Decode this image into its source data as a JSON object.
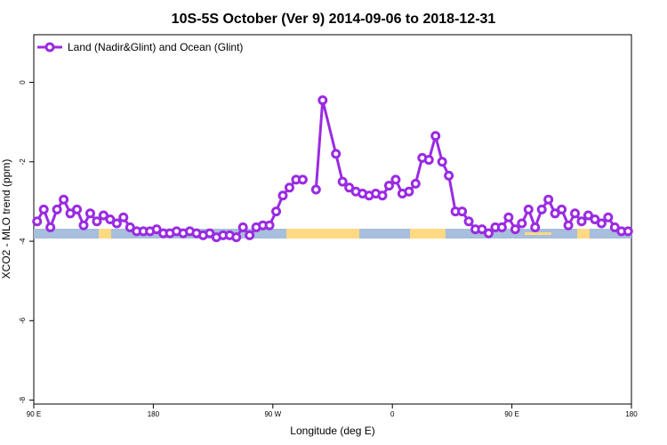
{
  "chart_data": {
    "type": "line",
    "title": "10S-5S October (Ver 9)   2014-09-06 to 2018-12-31",
    "xlabel": "Longitude (deg E)",
    "ylabel": "XCO2 - MLO trend (ppm)",
    "xlim": [
      90,
      450
    ],
    "ylim": [
      -8.1,
      1.2
    ],
    "x_ticks": [
      {
        "value": 90,
        "label": "90 E"
      },
      {
        "value": 162,
        "label": "180"
      },
      {
        "value": 234,
        "label": "90 W"
      },
      {
        "value": 306,
        "label": "0"
      },
      {
        "value": 378,
        "label": "90 E"
      },
      {
        "value": 450,
        "label": "180"
      }
    ],
    "y_ticks": [
      {
        "value": 0,
        "label": "0"
      },
      {
        "value": -2,
        "label": "-2"
      },
      {
        "value": -4,
        "label": "-4"
      },
      {
        "value": -6,
        "label": "-6"
      },
      {
        "value": -8,
        "label": "-8"
      }
    ],
    "legend_position": "top-left",
    "grid": false,
    "series": [
      {
        "name": "Land (Nadir&Glint) and Ocean (Glint)",
        "color": "#9a2be2",
        "x": [
          92,
          96,
          100,
          104,
          108,
          112,
          116,
          120,
          124,
          128,
          132,
          136,
          140,
          144,
          148,
          152,
          156,
          160,
          164,
          168,
          172,
          176,
          180,
          184,
          188,
          192,
          196,
          200,
          204,
          208,
          212,
          216,
          220,
          224,
          228,
          232,
          236,
          240,
          244,
          248,
          252,
          256,
          260,
          264,
          272,
          276,
          280,
          284,
          288,
          292,
          296,
          300,
          304,
          308,
          312,
          316,
          320,
          324,
          328,
          332,
          336,
          340,
          344,
          348,
          352,
          356,
          360,
          364,
          368,
          372,
          376,
          380,
          384,
          388,
          392,
          396,
          400,
          404,
          408,
          412,
          416,
          420,
          424,
          428,
          432,
          436,
          440,
          444,
          448
        ],
        "y": [
          -3.5,
          -3.2,
          -3.65,
          -3.2,
          -2.95,
          -3.3,
          -3.2,
          -3.6,
          -3.3,
          -3.5,
          -3.35,
          -3.45,
          -3.55,
          -3.4,
          -3.65,
          -3.75,
          -3.75,
          -3.75,
          -3.7,
          -3.8,
          -3.8,
          -3.75,
          -3.8,
          -3.75,
          -3.8,
          -3.85,
          -3.8,
          -3.9,
          -3.85,
          -3.85,
          -3.9,
          -3.65,
          -3.85,
          -3.65,
          -3.6,
          -3.6,
          -3.25,
          -2.85,
          -2.65,
          -2.45,
          -2.45,
          null,
          -2.7,
          -0.45,
          -1.8,
          -2.5,
          -2.65,
          -2.75,
          -2.8,
          -2.85,
          -2.8,
          -2.85,
          -2.6,
          -2.45,
          -2.8,
          -2.75,
          -2.55,
          -1.9,
          -1.95,
          -1.35,
          -2.0,
          -2.35,
          -3.25,
          -3.25,
          -3.5,
          -3.7,
          -3.7,
          -3.8,
          -3.65,
          -3.65,
          -3.4,
          -3.7,
          -3.55,
          -3.2,
          -3.65,
          -3.2,
          -2.95,
          -3.3,
          -3.2,
          -3.6,
          -3.3,
          -3.5,
          -3.35,
          -3.45,
          -3.55,
          -3.4,
          -3.65,
          -3.75,
          -3.75
        ]
      }
    ]
  }
}
